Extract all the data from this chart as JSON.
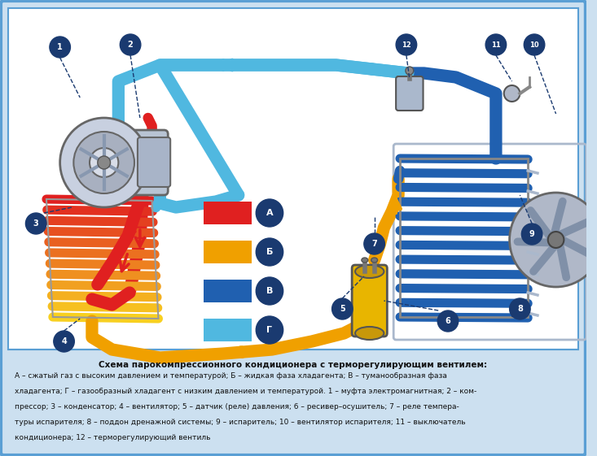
{
  "bg_color": "#cce0f0",
  "border_color": "#5a9fd4",
  "white_area_color": "#ffffff",
  "title": "Схема парокомпрессионного кондиционера с терморегулирующим вентилем:",
  "desc_line1": "А – сжатый газ с высоким давлением и температурой; Б – жидкая фаза хладагента; В – туманообразная фаза",
  "desc_line2": "хладагента; Г – газообразный хладагент с низким давлением и температурой. 1 – муфта электромагнитная; 2 – ком-",
  "desc_line3": "прессор; 3 – конденсатор; 4 – вентилятор; 5 – датчик (реле) давления; 6 – ресивер–осушитель; 7 – реле темпера-",
  "desc_line4": "туры испарителя; 8 – поддон дренажной системы; 9 – испаритель; 10 – вентилятор испарителя; 11 – выключатель",
  "desc_line5": "кондиционера; 12 – терморегулирующий вентиль",
  "red": "#e02020",
  "orange": "#f0a000",
  "dkblue": "#2060b0",
  "ltblue": "#50b8e0",
  "circle_color": "#1a3a70",
  "legend": [
    {
      "label": "А",
      "color": "#e02020"
    },
    {
      "label": "Б",
      "color": "#f0a000"
    },
    {
      "label": "В",
      "color": "#2060b0"
    },
    {
      "label": "Г",
      "color": "#50b8e0"
    }
  ]
}
